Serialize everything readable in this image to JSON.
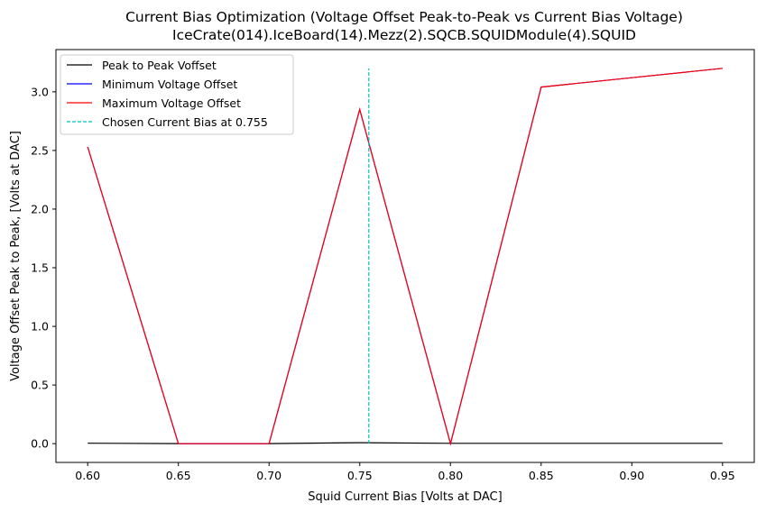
{
  "chart_data": {
    "type": "line",
    "title": "Current Bias Optimization (Voltage Offset Peak-to-Peak vs Current Bias Voltage)",
    "subtitle": "IceCrate(014).IceBoard(14).Mezz(2).SQCB.SQUIDModule(4).SQUID",
    "xlabel": "Squid Current Bias [Volts at DAC]",
    "ylabel": "Voltage Offset Peak to Peak, [Volts at DAC]",
    "xlim": [
      0.5825,
      0.9675
    ],
    "ylim": [
      -0.16,
      3.36
    ],
    "x_ticks": [
      0.6,
      0.65,
      0.7,
      0.75,
      0.8,
      0.85,
      0.9,
      0.95
    ],
    "x_tick_labels": [
      "0.60",
      "0.65",
      "0.70",
      "0.75",
      "0.80",
      "0.85",
      "0.90",
      "0.95"
    ],
    "y_ticks": [
      0.0,
      0.5,
      1.0,
      1.5,
      2.0,
      2.5,
      3.0
    ],
    "y_tick_labels": [
      "0.0",
      "0.5",
      "1.0",
      "1.5",
      "2.0",
      "2.5",
      "3.0"
    ],
    "grid": false,
    "legend_position": "top-left",
    "series": [
      {
        "name": "Peak to Peak Voffset",
        "color": "#000000",
        "style": "solid",
        "x": [
          0.6,
          0.65,
          0.7,
          0.75,
          0.8,
          0.85,
          0.9,
          0.95
        ],
        "y": [
          0.004,
          0.001,
          0.001,
          0.008,
          0.003,
          0.003,
          0.003,
          0.003
        ]
      },
      {
        "name": "Minimum Voltage Offset",
        "color": "#0000ff",
        "style": "solid",
        "x": [
          0.6,
          0.65,
          0.7,
          0.75,
          0.8,
          0.85,
          0.9,
          0.95
        ],
        "y": [
          2.53,
          0.0,
          0.0,
          2.85,
          0.0,
          3.04,
          3.12,
          3.2
        ]
      },
      {
        "name": "Maximum Voltage Offset",
        "color": "#ff0000",
        "style": "solid",
        "x": [
          0.6,
          0.65,
          0.7,
          0.75,
          0.8,
          0.85,
          0.9,
          0.95
        ],
        "y": [
          2.53,
          0.0,
          0.0,
          2.85,
          0.0,
          3.04,
          3.12,
          3.2
        ]
      }
    ],
    "vline": {
      "name": "Chosen Current Bias at 0.755",
      "color": "#00bfbf",
      "style": "dashed",
      "x": 0.755,
      "y_range": [
        0.0,
        3.2
      ]
    }
  }
}
